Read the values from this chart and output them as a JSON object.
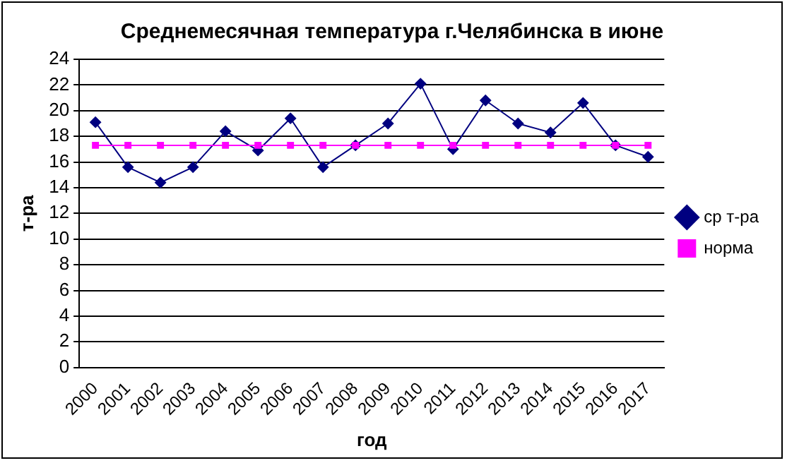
{
  "chart_data": {
    "type": "line",
    "title": "Среднемесячная температура г.Челябинска в июне",
    "xlabel": "год",
    "ylabel": "т-ра",
    "categories": [
      "2000",
      "2001",
      "2002",
      "2003",
      "2004",
      "2005",
      "2006",
      "2007",
      "2008",
      "2009",
      "2010",
      "2011",
      "2012",
      "2013",
      "2014",
      "2015",
      "2016",
      "2017"
    ],
    "series": [
      {
        "name": "ср т-ра",
        "color": "#000080",
        "marker": "diamond",
        "values": [
          19.1,
          15.6,
          14.4,
          15.6,
          18.4,
          16.9,
          19.4,
          15.6,
          17.3,
          19.0,
          22.1,
          17.0,
          20.8,
          19.0,
          18.3,
          20.6,
          17.3,
          16.4
        ]
      },
      {
        "name": "норма",
        "color": "#ff00ff",
        "marker": "square",
        "values": [
          17.3,
          17.3,
          17.3,
          17.3,
          17.3,
          17.3,
          17.3,
          17.3,
          17.3,
          17.3,
          17.3,
          17.3,
          17.3,
          17.3,
          17.3,
          17.3,
          17.3,
          17.3
        ]
      }
    ],
    "ylim": [
      0,
      24
    ],
    "yticks": [
      0,
      2,
      4,
      6,
      8,
      10,
      12,
      14,
      16,
      18,
      20,
      22,
      24
    ],
    "grid": "y",
    "legend": "right"
  }
}
